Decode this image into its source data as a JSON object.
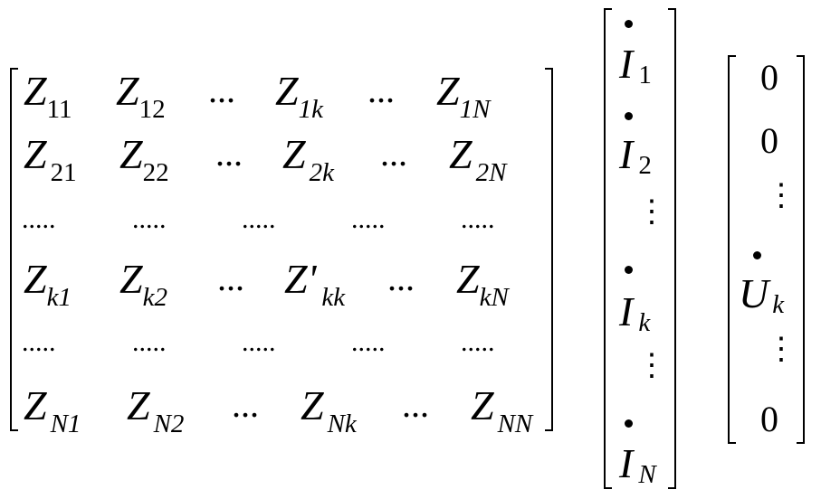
{
  "z_matrix": {
    "rows": [
      [
        {
          "main": "Z",
          "sub": "11"
        },
        {
          "main": "Z",
          "sub": "12"
        },
        {
          "plain": "..."
        },
        {
          "main": "Z",
          "sub": "1k"
        },
        {
          "plain": "..."
        },
        {
          "main": "Z",
          "sub": "1N"
        }
      ],
      [
        {
          "main": "Z",
          "sub": "21"
        },
        {
          "main": "Z",
          "sub": "22"
        },
        {
          "plain": "..."
        },
        {
          "main": "Z",
          "sub": "2k"
        },
        {
          "plain": "..."
        },
        {
          "main": "Z",
          "sub": "2N"
        }
      ],
      [
        {
          "dots": "....."
        },
        {
          "dots": "....."
        },
        {
          "dots": "....."
        },
        {
          "dots": "....."
        },
        {
          "dots": "....."
        }
      ],
      [
        {
          "main": "Z",
          "sub": "k1"
        },
        {
          "main": "Z",
          "sub": "k2"
        },
        {
          "plain": "..."
        },
        {
          "main": "Z'",
          "sub": "kk"
        },
        {
          "plain": "..."
        },
        {
          "main": "Z",
          "sub": "kN"
        }
      ],
      [
        {
          "dots": "....."
        },
        {
          "dots": "....."
        },
        {
          "dots": "....."
        },
        {
          "dots": "....."
        },
        {
          "dots": "....."
        }
      ],
      [
        {
          "main": "Z",
          "sub": "N1"
        },
        {
          "main": "Z",
          "sub": "N2"
        },
        {
          "plain": "..."
        },
        {
          "main": "Z",
          "sub": "Nk"
        },
        {
          "plain": "..."
        },
        {
          "main": "Z",
          "sub": "NN"
        }
      ]
    ]
  },
  "current_vector": {
    "entries": [
      {
        "main": "I",
        "sub": "1"
      },
      {
        "main": "I",
        "sub": "2"
      },
      {
        "vdots": "⋮"
      },
      {
        "main": "I",
        "sub": "k"
      },
      {
        "vdots": "⋮"
      },
      {
        "main": "I",
        "sub": "N"
      }
    ]
  },
  "voltage_vector": {
    "entries": [
      {
        "plain": "0"
      },
      {
        "plain": "0"
      },
      {
        "vdots": "⋮"
      },
      {
        "main": "U",
        "sub": "k"
      },
      {
        "vdots": "⋮"
      },
      {
        "plain": "0"
      }
    ]
  }
}
